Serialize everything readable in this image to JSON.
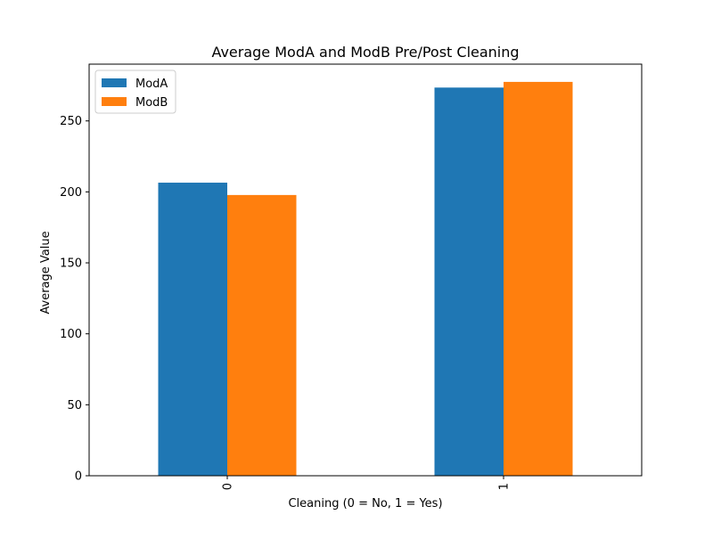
{
  "chart_data": {
    "type": "bar",
    "title": "Average ModA and ModB Pre/Post Cleaning",
    "xlabel": "Cleaning (0 = No, 1 = Yes)",
    "ylabel": "Average Value",
    "categories": [
      "0",
      "1"
    ],
    "series": [
      {
        "name": "ModA",
        "values": [
          206.5,
          273.5
        ],
        "color": "#1f77b4"
      },
      {
        "name": "ModB",
        "values": [
          197.8,
          277.5
        ],
        "color": "#ff7f0e"
      }
    ],
    "ylim": [
      0,
      290.0
    ],
    "yticks": [
      0,
      50,
      100,
      150,
      200,
      250
    ],
    "grid": false,
    "legend_position": "top-left",
    "x_tick_rotation": 90
  }
}
